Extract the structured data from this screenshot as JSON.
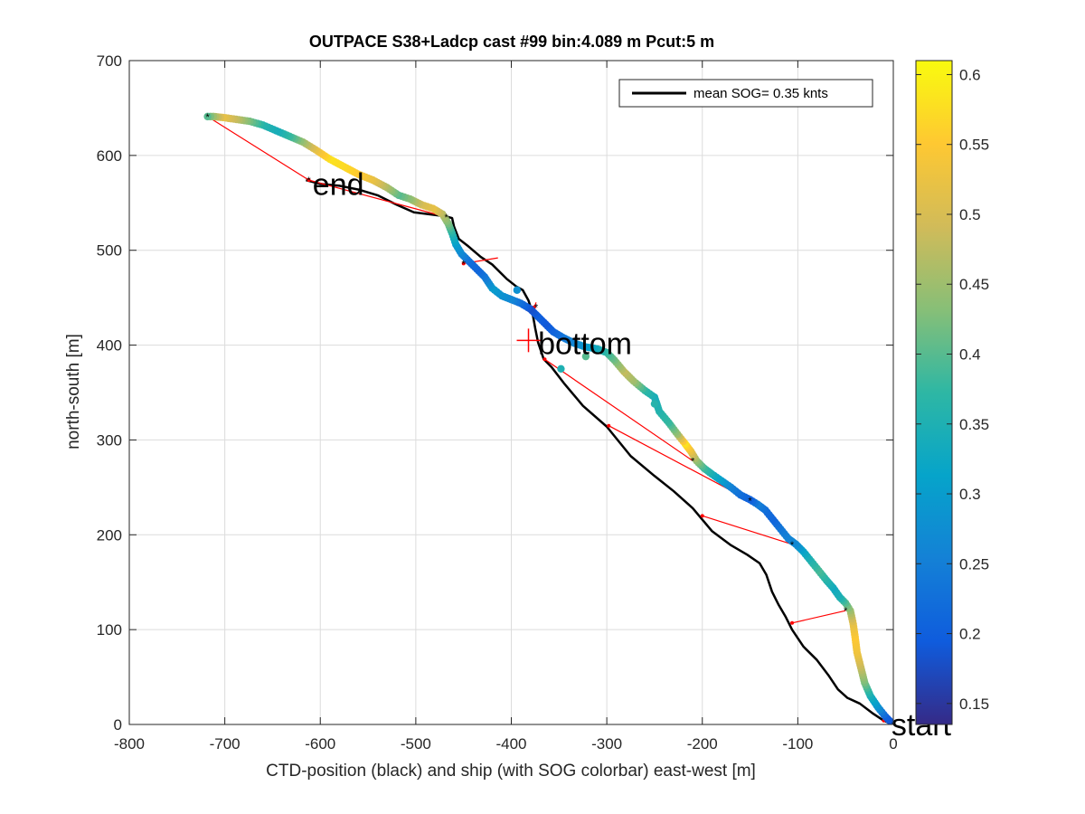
{
  "chart_data": {
    "type": "scatter",
    "title": "OUTPACE S38+Ladcp cast #99 bin:4.089 m  Pcut:5 m",
    "xlabel": "CTD-position (black) and ship (with SOG colorbar) east-west [m]",
    "ylabel": "north-south [m]",
    "xlim": [
      -800,
      0
    ],
    "ylim": [
      0,
      700
    ],
    "x_ticks": [
      "-800",
      "-700",
      "-600",
      "-500",
      "-400",
      "-300",
      "-200",
      "-100",
      "0"
    ],
    "y_ticks": [
      "0",
      "100",
      "200",
      "300",
      "400",
      "500",
      "600",
      "700"
    ],
    "grid": true,
    "legend": {
      "position": "top-right",
      "entries": [
        "mean SOG=  0.35 knts"
      ]
    },
    "colorbar": {
      "colormap": "parula",
      "range": [
        0.135,
        0.61
      ],
      "ticks": [
        "0.15",
        "0.2",
        "0.25",
        "0.3",
        "0.35",
        "0.4",
        "0.45",
        "0.5",
        "0.55",
        "0.6"
      ]
    },
    "annotations": [
      {
        "text": "start",
        "x": -2,
        "y": 0
      },
      {
        "text": "bottom",
        "x": -372,
        "y": 402
      },
      {
        "text": "end",
        "x": -608,
        "y": 570
      }
    ],
    "bottom_marker": {
      "x": -382,
      "y": 405
    },
    "ctd_track": {
      "color": "#000000",
      "points": [
        [
          0,
          0
        ],
        [
          -10,
          4
        ],
        [
          -22,
          12
        ],
        [
          -35,
          22
        ],
        [
          -48,
          28
        ],
        [
          -58,
          37
        ],
        [
          -68,
          52
        ],
        [
          -80,
          68
        ],
        [
          -94,
          82
        ],
        [
          -106,
          100
        ],
        [
          -113,
          114
        ],
        [
          -120,
          126
        ],
        [
          -127,
          140
        ],
        [
          -133,
          158
        ],
        [
          -140,
          170
        ],
        [
          -153,
          179
        ],
        [
          -170,
          189
        ],
        [
          -190,
          204
        ],
        [
          -210,
          228
        ],
        [
          -230,
          246
        ],
        [
          -250,
          262
        ],
        [
          -275,
          283
        ],
        [
          -300,
          314
        ],
        [
          -325,
          336
        ],
        [
          -345,
          360
        ],
        [
          -358,
          377
        ],
        [
          -366,
          385
        ],
        [
          -372,
          403
        ],
        [
          -375,
          418
        ],
        [
          -378,
          435
        ],
        [
          -382,
          447
        ],
        [
          -388,
          458
        ],
        [
          -395,
          462
        ],
        [
          -405,
          470
        ],
        [
          -420,
          485
        ],
        [
          -432,
          493
        ],
        [
          -446,
          505
        ],
        [
          -455,
          512
        ],
        [
          -460,
          525
        ],
        [
          -462,
          534
        ],
        [
          -470,
          536
        ],
        [
          -486,
          538
        ],
        [
          -502,
          540
        ],
        [
          -520,
          548
        ],
        [
          -540,
          558
        ],
        [
          -560,
          564
        ],
        [
          -580,
          568
        ],
        [
          -600,
          570
        ],
        [
          -615,
          574
        ]
      ]
    },
    "ship_track": {
      "sog_mean_knots": 0.35,
      "points": [
        [
          0,
          0,
          0.18
        ],
        [
          -8,
          8,
          0.2
        ],
        [
          -16,
          18,
          0.28
        ],
        [
          -24,
          30,
          0.34
        ],
        [
          -30,
          44,
          0.42
        ],
        [
          -34,
          60,
          0.48
        ],
        [
          -38,
          76,
          0.53
        ],
        [
          -40,
          92,
          0.55
        ],
        [
          -42,
          106,
          0.52
        ],
        [
          -45,
          120,
          0.45
        ],
        [
          -50,
          128,
          0.4
        ],
        [
          -56,
          134,
          0.35
        ],
        [
          -63,
          144,
          0.33
        ],
        [
          -70,
          152,
          0.36
        ],
        [
          -78,
          162,
          0.39
        ],
        [
          -86,
          172,
          0.36
        ],
        [
          -94,
          182,
          0.32
        ],
        [
          -102,
          190,
          0.27
        ],
        [
          -110,
          196,
          0.26
        ],
        [
          -118,
          206,
          0.24
        ],
        [
          -126,
          216,
          0.21
        ],
        [
          -134,
          226,
          0.22
        ],
        [
          -142,
          232,
          0.25
        ],
        [
          -150,
          237,
          0.2
        ],
        [
          -160,
          242,
          0.22
        ],
        [
          -170,
          250,
          0.25
        ],
        [
          -180,
          257,
          0.3
        ],
        [
          -190,
          264,
          0.34
        ],
        [
          -198,
          270,
          0.38
        ],
        [
          -206,
          278,
          0.44
        ],
        [
          -212,
          288,
          0.52
        ],
        [
          -218,
          296,
          0.58
        ],
        [
          -226,
          306,
          0.45
        ],
        [
          -235,
          318,
          0.38
        ],
        [
          -245,
          330,
          0.36
        ],
        [
          -250,
          345,
          0.34
        ],
        [
          -260,
          352,
          0.37
        ],
        [
          -272,
          362,
          0.45
        ],
        [
          -282,
          372,
          0.48
        ],
        [
          -292,
          384,
          0.42
        ],
        [
          -300,
          392,
          0.38
        ],
        [
          -310,
          396,
          0.34
        ],
        [
          -322,
          398,
          0.3
        ],
        [
          -334,
          402,
          0.27
        ],
        [
          -346,
          408,
          0.24
        ],
        [
          -356,
          414,
          0.21
        ],
        [
          -364,
          422,
          0.19
        ],
        [
          -372,
          430,
          0.2
        ],
        [
          -380,
          438,
          0.18
        ],
        [
          -390,
          444,
          0.22
        ],
        [
          -400,
          448,
          0.26
        ],
        [
          -410,
          452,
          0.28
        ],
        [
          -420,
          460,
          0.3
        ],
        [
          -428,
          472,
          0.24
        ],
        [
          -436,
          480,
          0.21
        ],
        [
          -444,
          488,
          0.22
        ],
        [
          -452,
          496,
          0.26
        ],
        [
          -458,
          506,
          0.3
        ],
        [
          -462,
          518,
          0.36
        ],
        [
          -466,
          528,
          0.42
        ],
        [
          -472,
          538,
          0.47
        ],
        [
          -482,
          544,
          0.52
        ],
        [
          -494,
          548,
          0.5
        ],
        [
          -506,
          554,
          0.44
        ],
        [
          -518,
          558,
          0.4
        ],
        [
          -530,
          566,
          0.46
        ],
        [
          -545,
          574,
          0.52
        ],
        [
          -560,
          580,
          0.55
        ],
        [
          -575,
          588,
          0.57
        ],
        [
          -590,
          596,
          0.58
        ],
        [
          -605,
          606,
          0.52
        ],
        [
          -618,
          614,
          0.45
        ],
        [
          -632,
          620,
          0.38
        ],
        [
          -646,
          626,
          0.34
        ],
        [
          -660,
          632,
          0.36
        ],
        [
          -674,
          636,
          0.42
        ],
        [
          -688,
          638,
          0.48
        ],
        [
          -702,
          640,
          0.52
        ],
        [
          -712,
          641,
          0.45
        ],
        [
          -718,
          641,
          0.4
        ]
      ]
    },
    "ship_outliers": [
      [
        -322,
        388,
        0.4
      ],
      [
        -348,
        375,
        0.35
      ],
      [
        -394,
        458,
        0.28
      ],
      [
        -250,
        338,
        0.36
      ]
    ],
    "red_links": {
      "color": "#ff0000",
      "segments": [
        [
          [
            0,
            0
          ],
          [
            -10,
            4
          ]
        ],
        [
          [
            -50,
            120
          ],
          [
            -106,
            107
          ]
        ],
        [
          [
            -106,
            190
          ],
          [
            -200,
            220
          ]
        ],
        [
          [
            -150,
            236
          ],
          [
            -298,
            315
          ]
        ],
        [
          [
            -210,
            278
          ],
          [
            -365,
            385
          ]
        ],
        [
          [
            -374,
            445
          ],
          [
            -376,
            440
          ]
        ],
        [
          [
            -414,
            492
          ],
          [
            -450,
            486
          ]
        ],
        [
          [
            -468,
            535
          ],
          [
            -612,
            574
          ]
        ],
        [
          [
            -612,
            574
          ],
          [
            -718,
            641
          ]
        ]
      ]
    }
  }
}
